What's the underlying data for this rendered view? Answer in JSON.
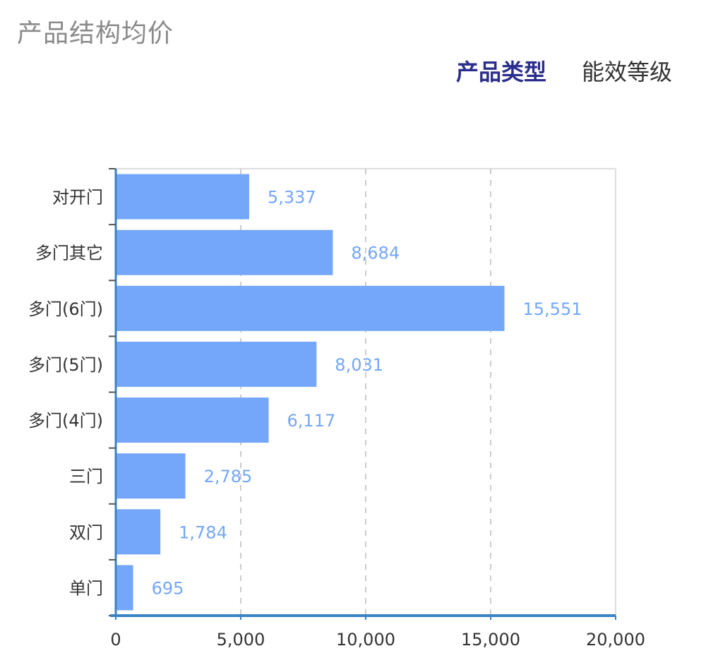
{
  "header": {
    "title": "产品结构均价",
    "tabs": [
      {
        "label": "产品类型",
        "active": true
      },
      {
        "label": "能效等级",
        "active": false
      }
    ]
  },
  "colors": {
    "bar": "#74a7f9",
    "value_label": "#74a7f9",
    "axis": "#3a83c4",
    "grid": "#cccccc",
    "title": "#8a8a8a",
    "tab_active": "#2b2e8c"
  },
  "chart_data": {
    "type": "bar",
    "orientation": "horizontal",
    "categories": [
      "对开门",
      "多门其它",
      "多门(6门)",
      "多门(5门)",
      "多门(4门)",
      "三门",
      "双门",
      "单门"
    ],
    "values": [
      5337,
      8684,
      15551,
      8031,
      6117,
      2785,
      1784,
      695
    ],
    "value_labels": [
      "5,337",
      "8,684",
      "15,551",
      "8,031",
      "6,117",
      "2,785",
      "1,784",
      "695"
    ],
    "xlim": [
      0,
      20000
    ],
    "xticks": [
      0,
      5000,
      10000,
      15000,
      20000
    ],
    "xtick_labels": [
      "0",
      "5,000",
      "10,000",
      "15,000",
      "20,000"
    ],
    "grid": "vertical-dashed",
    "legend": "none"
  }
}
